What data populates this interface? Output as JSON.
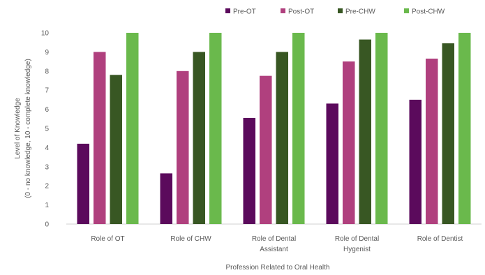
{
  "chart_data": {
    "type": "bar",
    "title": "",
    "xlabel": "Profession Related to Oral Health",
    "ylabel_line1": "Level of Knowledge",
    "ylabel_line2": "(0 - no knowledge, 10 - complete knowledge)",
    "ylim": [
      0,
      10
    ],
    "yticks": [
      0,
      1,
      2,
      3,
      4,
      5,
      6,
      7,
      8,
      9,
      10
    ],
    "grid": false,
    "legend_position": "top-right",
    "categories": [
      [
        "Role of OT"
      ],
      [
        "Role of CHW"
      ],
      [
        "Role of Dental",
        "Assistant"
      ],
      [
        "Role of Dental",
        "Hygenist"
      ],
      [
        "Role of Dentist"
      ]
    ],
    "series": [
      {
        "name": "Pre-OT",
        "color": "#5b0a5c",
        "values": [
          4.2,
          2.65,
          5.55,
          6.3,
          6.5
        ]
      },
      {
        "name": "Post-OT",
        "color": "#b0407e",
        "values": [
          9.0,
          8.0,
          7.75,
          8.5,
          8.65
        ]
      },
      {
        "name": "Pre-CHW",
        "color": "#385723",
        "values": [
          7.8,
          9.0,
          9.0,
          9.65,
          9.45
        ]
      },
      {
        "name": "Post-CHW",
        "color": "#6ab94c",
        "values": [
          10.0,
          10.0,
          10.0,
          10.0,
          10.0
        ]
      }
    ]
  }
}
